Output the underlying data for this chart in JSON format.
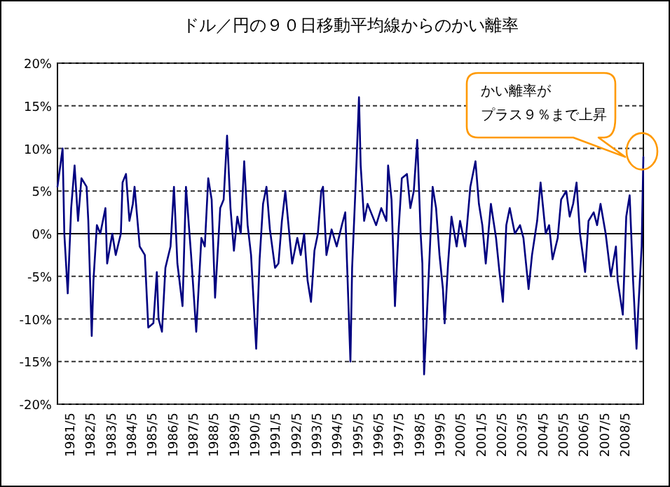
{
  "chart_data": {
    "type": "line",
    "title": "ドル／円の９０日移動平均線からのかい離率",
    "x": [
      "1980-10",
      "1981-01",
      "1981-02",
      "1981-04",
      "1981-06",
      "1981-08",
      "1981-10",
      "1981-12",
      "1982-03",
      "1982-04",
      "1982-06",
      "1982-07",
      "1982-09",
      "1982-11",
      "1983-02",
      "1983-03",
      "1983-06",
      "1983-08",
      "1983-11",
      "1983-12",
      "1984-02",
      "1984-04",
      "1984-06",
      "1984-07",
      "1984-10",
      "1985-01",
      "1985-03",
      "1985-06",
      "1985-08",
      "1985-09",
      "1985-11",
      "1986-01",
      "1986-04",
      "1986-06",
      "1986-08",
      "1986-11",
      "1987-01",
      "1987-04",
      "1987-07",
      "1987-10",
      "1987-12",
      "1988-02",
      "1988-04",
      "1988-06",
      "1988-09",
      "1988-11",
      "1989-01",
      "1989-03",
      "1989-05",
      "1989-07",
      "1989-09",
      "1989-11",
      "1990-01",
      "1990-03",
      "1990-06",
      "1990-08",
      "1990-10",
      "1990-12",
      "1991-02",
      "1991-05",
      "1991-07",
      "1991-09",
      "1991-11",
      "1992-02",
      "1992-03",
      "1992-06",
      "1992-08",
      "1992-10",
      "1992-12",
      "1993-02",
      "1993-04",
      "1993-06",
      "1993-08",
      "1993-09",
      "1993-11",
      "1994-02",
      "1994-05",
      "1994-08",
      "1994-10",
      "1995-01",
      "1995-02",
      "1995-04",
      "1995-06",
      "1995-07",
      "1995-09",
      "1995-11",
      "1996-01",
      "1996-04",
      "1996-07",
      "1996-10",
      "1996-11",
      "1997-01",
      "1997-03",
      "1997-05",
      "1997-07",
      "1997-10",
      "1997-12",
      "1998-02",
      "1998-04",
      "1998-06",
      "1998-07",
      "1998-08",
      "1998-10",
      "1999-01",
      "1999-03",
      "1999-05",
      "1999-07",
      "1999-08",
      "1999-10",
      "1999-12",
      "2000-03",
      "2000-05",
      "2000-08",
      "2000-11",
      "2001-02",
      "2001-04",
      "2001-06",
      "2001-08",
      "2001-11",
      "2002-02",
      "2002-04",
      "2002-06",
      "2002-08",
      "2002-10",
      "2003-01",
      "2003-04",
      "2003-06",
      "2003-09",
      "2003-11",
      "2004-02",
      "2004-04",
      "2004-07",
      "2004-09",
      "2004-11",
      "2005-02",
      "2005-04",
      "2005-07",
      "2005-09",
      "2005-11",
      "2006-01",
      "2006-03",
      "2006-06",
      "2006-08",
      "2006-11",
      "2007-01",
      "2007-03",
      "2007-06",
      "2007-09",
      "2007-12",
      "2008-01",
      "2008-04",
      "2008-06",
      "2008-08",
      "2008-10",
      "2008-12",
      "2009-01",
      "2009-03",
      "2009-04"
    ],
    "series": [
      {
        "color": "#000080",
        "values": [
          5.5,
          10,
          0,
          -7,
          3,
          8,
          1.5,
          6.5,
          5.5,
          1.5,
          -12,
          -5.5,
          1,
          0,
          3,
          -3.5,
          0,
          -2.5,
          0,
          6,
          7,
          1.5,
          3.5,
          5.5,
          -1.5,
          -2.5,
          -11,
          -10.5,
          -4.5,
          -10,
          -11.5,
          -4,
          -1.5,
          5.5,
          -3.5,
          -8.5,
          5.5,
          -2.5,
          -11.5,
          -0.5,
          -1.5,
          6.5,
          4,
          -7.5,
          3,
          4,
          11.5,
          3,
          -2,
          2,
          0,
          8.5,
          1,
          -2.5,
          -13.5,
          -3,
          3.5,
          5.5,
          0.5,
          -4,
          -3.5,
          1.5,
          5,
          -1.5,
          -3.5,
          -0.5,
          -2.5,
          0,
          -5.5,
          -8,
          -2,
          0,
          5,
          5.5,
          -2.5,
          0.5,
          -1.5,
          1,
          2.5,
          -15,
          -4,
          5.5,
          16,
          8,
          1.5,
          3.5,
          2.5,
          1,
          3,
          1.5,
          8,
          4,
          -8.5,
          0,
          6.5,
          7,
          3,
          5,
          11,
          0,
          -3.5,
          -16.5,
          -8,
          5.5,
          3,
          -2.5,
          -6.5,
          -10.5,
          -3.5,
          2,
          -1.5,
          1.5,
          -1.5,
          5.5,
          8.5,
          3.5,
          1,
          -3.5,
          3.5,
          -0.5,
          -4.5,
          -8,
          1,
          3,
          0,
          1,
          -0.5,
          -6.5,
          -2.5,
          1.5,
          6,
          0,
          1,
          -3,
          -0.5,
          4,
          5,
          2,
          3.5,
          6,
          0,
          -4.5,
          1.5,
          2.5,
          1,
          3.5,
          0,
          -5,
          -1.5,
          -5.5,
          -9.5,
          2,
          4.5,
          -5.5,
          -13.5,
          -9,
          -1.5,
          9
        ]
      }
    ],
    "xlim": [
      "1980-10",
      "2009-04"
    ],
    "xticks": [
      {
        "value": "1981-05",
        "label": "1981/5"
      },
      {
        "value": "1982-05",
        "label": "1982/5"
      },
      {
        "value": "1983-05",
        "label": "1983/5"
      },
      {
        "value": "1984-05",
        "label": "1984/5"
      },
      {
        "value": "1985-05",
        "label": "1985/5"
      },
      {
        "value": "1986-05",
        "label": "1986/5"
      },
      {
        "value": "1987-05",
        "label": "1987/5"
      },
      {
        "value": "1988-05",
        "label": "1988/5"
      },
      {
        "value": "1989-05",
        "label": "1989/5"
      },
      {
        "value": "1990-05",
        "label": "1990/5"
      },
      {
        "value": "1991-05",
        "label": "1991/5"
      },
      {
        "value": "1992-05",
        "label": "1992/5"
      },
      {
        "value": "1993-05",
        "label": "1993/5"
      },
      {
        "value": "1994-05",
        "label": "1994/5"
      },
      {
        "value": "1995-05",
        "label": "1995/5"
      },
      {
        "value": "1996-05",
        "label": "1996/5"
      },
      {
        "value": "1997-05",
        "label": "1997/5"
      },
      {
        "value": "1998-05",
        "label": "1998/5"
      },
      {
        "value": "1999-05",
        "label": "1999/5"
      },
      {
        "value": "2000-05",
        "label": "2000/5"
      },
      {
        "value": "2001-05",
        "label": "2001/5"
      },
      {
        "value": "2002-05",
        "label": "2002/5"
      },
      {
        "value": "2003-05",
        "label": "2003/5"
      },
      {
        "value": "2004-05",
        "label": "2004/5"
      },
      {
        "value": "2005-05",
        "label": "2005/5"
      },
      {
        "value": "2006-05",
        "label": "2006/5"
      },
      {
        "value": "2007-05",
        "label": "2007/5"
      },
      {
        "value": "2008-05",
        "label": "2008/5"
      }
    ],
    "ylim": [
      -20,
      20
    ],
    "yticks": [
      {
        "value": 20,
        "label": "20%"
      },
      {
        "value": 15,
        "label": "15%"
      },
      {
        "value": 10,
        "label": "10%"
      },
      {
        "value": 5,
        "label": "5%"
      },
      {
        "value": 0,
        "label": "0%"
      },
      {
        "value": -5,
        "label": "-5%"
      },
      {
        "value": -10,
        "label": "-10%"
      },
      {
        "value": -15,
        "label": "-15%"
      },
      {
        "value": -20,
        "label": "-20%"
      }
    ],
    "grid": "y",
    "marker": "none",
    "line_style": "solid",
    "annotations": [
      "かい離率が",
      "プラス９％まで上昇"
    ]
  }
}
